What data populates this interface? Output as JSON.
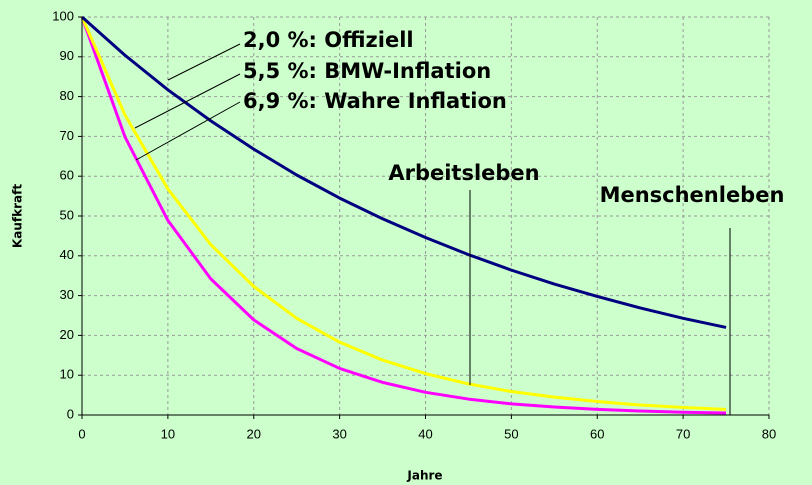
{
  "chart_data": {
    "type": "line",
    "x_label": "Jahre",
    "y_label": "Kaufkraft",
    "x": [
      0,
      5,
      10,
      15,
      20,
      25,
      30,
      35,
      40,
      45,
      50,
      55,
      60,
      65,
      70,
      75
    ],
    "series": [
      {
        "name": "2,0 %: Offiziell",
        "color": "#000080",
        "values": [
          100,
          90.4,
          81.7,
          73.9,
          66.8,
          60.3,
          54.5,
          49.3,
          44.6,
          40.3,
          36.4,
          32.9,
          29.8,
          26.9,
          24.3,
          22.0
        ]
      },
      {
        "name": "5,5 %: BMW-Inflation",
        "color": "#ffff00",
        "values": [
          100,
          75.4,
          56.8,
          42.8,
          32.3,
          24.3,
          18.3,
          13.8,
          10.4,
          7.8,
          5.9,
          4.5,
          3.4,
          2.5,
          1.9,
          1.4
        ]
      },
      {
        "name": "6,9 %: Wahre Inflation",
        "color": "#ff00ff",
        "values": [
          100,
          69.9,
          48.9,
          34.2,
          23.9,
          16.7,
          11.7,
          8.2,
          5.7,
          4.0,
          2.8,
          2.0,
          1.4,
          1.0,
          0.7,
          0.5
        ]
      }
    ],
    "annotations": [
      "Arbeitsleben",
      "Menschenleben"
    ],
    "xlim": [
      0,
      80
    ],
    "xticks": [
      0,
      10,
      20,
      30,
      40,
      50,
      60,
      70,
      80
    ],
    "ylim": [
      0,
      100
    ],
    "yticks": [
      0,
      10,
      20,
      30,
      40,
      50,
      60,
      70,
      80,
      90,
      100
    ],
    "grid": true
  }
}
